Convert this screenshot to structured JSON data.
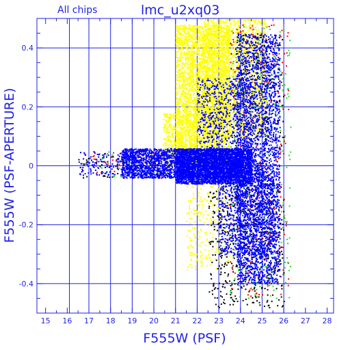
{
  "chart_data": {
    "type": "scatter",
    "title": "lmc_u2xq03",
    "subtitle": "All chips",
    "xlabel": "F555W (PSF)",
    "ylabel": "F555W (PSF-APERTURE)",
    "xlim": [
      14.6,
      28.3
    ],
    "ylim": [
      -0.5,
      0.5
    ],
    "x_ticks": [
      15,
      16,
      17,
      18,
      19,
      20,
      21,
      22,
      23,
      24,
      25,
      26,
      27,
      28
    ],
    "x_tick_labels": [
      "15",
      "16",
      "17",
      "18",
      "19",
      "20",
      "21",
      "22",
      "23",
      "24",
      "25",
      "26",
      "27",
      "28"
    ],
    "y_ticks": [
      -0.4,
      -0.2,
      0,
      0.2,
      0.4
    ],
    "y_tick_labels": [
      "-0.4",
      "-0.2",
      "0",
      "0.2",
      "0.4"
    ],
    "x_grid": [
      16.1,
      17,
      18,
      19,
      20,
      21,
      22,
      23,
      24,
      25,
      26
    ],
    "y_grid": [
      -0.4,
      -0.2,
      0,
      0.2,
      0.4
    ],
    "grid": true,
    "colors": {
      "axis": "#1f1fe6",
      "grid": "#1f1fe6",
      "yellow": "#ffff00",
      "blue": "#0000ff",
      "green": "#22dd22",
      "red": "#ff0000",
      "black": "#000000"
    },
    "series_colors": [
      "yellow",
      "black",
      "red",
      "green",
      "blue"
    ],
    "density": {
      "yellow": [
        {
          "x": [
            21.0,
            23.5
          ],
          "y": [
            0.0,
            0.48
          ],
          "n": 3500
        },
        {
          "x": [
            22.2,
            25.2
          ],
          "y": [
            0.1,
            0.5
          ],
          "n": 2000
        },
        {
          "x": [
            20.4,
            22.0
          ],
          "y": [
            0.0,
            0.18
          ],
          "n": 500
        },
        {
          "x": [
            21.5,
            23.5
          ],
          "y": [
            -0.35,
            0.0
          ],
          "n": 350
        }
      ],
      "black": [
        {
          "x": [
            16.4,
            20.5
          ],
          "y": [
            -0.04,
            0.04
          ],
          "n": 60
        },
        {
          "x": [
            22.5,
            26.0
          ],
          "y": [
            -0.48,
            -0.05
          ],
          "n": 450
        },
        {
          "x": [
            23.5,
            26.0
          ],
          "y": [
            0.05,
            0.45
          ],
          "n": 120
        }
      ],
      "red": [
        {
          "x": [
            17.0,
            20.5
          ],
          "y": [
            -0.04,
            0.05
          ],
          "n": 60
        },
        {
          "x": [
            23.5,
            26.2
          ],
          "y": [
            -0.45,
            0.48
          ],
          "n": 280
        }
      ],
      "green": [
        {
          "x": [
            17.5,
            20.5
          ],
          "y": [
            -0.04,
            0.05
          ],
          "n": 50
        },
        {
          "x": [
            23.5,
            26.3
          ],
          "y": [
            -0.45,
            0.48
          ],
          "n": 320
        }
      ],
      "blue": [
        {
          "x": [
            18.5,
            24.0
          ],
          "y": [
            -0.04,
            0.06
          ],
          "n": 2600
        },
        {
          "x": [
            21.0,
            24.5
          ],
          "y": [
            -0.06,
            0.06
          ],
          "n": 2500
        },
        {
          "x": [
            23.8,
            25.8
          ],
          "y": [
            -0.4,
            0.45
          ],
          "n": 2800
        },
        {
          "x": [
            22.0,
            24.5
          ],
          "y": [
            0.0,
            0.3
          ],
          "n": 700
        },
        {
          "x": [
            23.0,
            25.5
          ],
          "y": [
            -0.3,
            0.0
          ],
          "n": 900
        },
        {
          "x": [
            16.5,
            18.5
          ],
          "y": [
            -0.03,
            0.05
          ],
          "n": 100
        }
      ]
    }
  }
}
